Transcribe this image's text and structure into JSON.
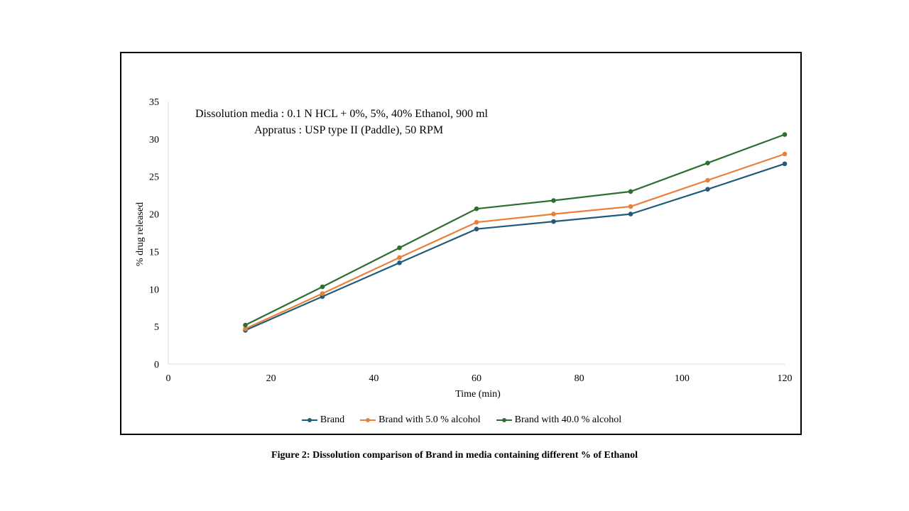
{
  "chart_data": {
    "type": "line",
    "title": "",
    "xlabel": "Time (min)",
    "ylabel": "% drug released",
    "xlim": [
      0,
      120
    ],
    "ylim": [
      0,
      35
    ],
    "x_ticks": [
      0,
      20,
      40,
      60,
      80,
      100,
      120
    ],
    "y_ticks": [
      0,
      5,
      10,
      15,
      20,
      25,
      30,
      35
    ],
    "x": [
      15,
      30,
      45,
      60,
      75,
      90,
      105,
      120
    ],
    "series": [
      {
        "name": "Brand",
        "color": "#1f5c7a",
        "values": [
          4.5,
          9.0,
          13.5,
          18.0,
          19.0,
          20.0,
          23.3,
          26.7
        ]
      },
      {
        "name": "Brand with 5.0 % alcohol",
        "color": "#e8803a",
        "values": [
          4.7,
          9.4,
          14.2,
          18.9,
          20.0,
          21.0,
          24.5,
          28.0
        ]
      },
      {
        "name": "Brand with 40.0 % alcohol",
        "color": "#2e6e2e",
        "values": [
          5.2,
          10.3,
          15.5,
          20.7,
          21.8,
          23.0,
          26.8,
          30.6
        ]
      }
    ],
    "annotations": [
      "Dissolution media : 0.1 N HCL + 0%, 5%, 40% Ethanol, 900 ml",
      "Appratus : USP  type II (Paddle), 50 RPM"
    ],
    "legend_position": "bottom",
    "grid": false
  },
  "caption": "Figure 2: Dissolution comparison of Brand in media containing different % of Ethanol"
}
